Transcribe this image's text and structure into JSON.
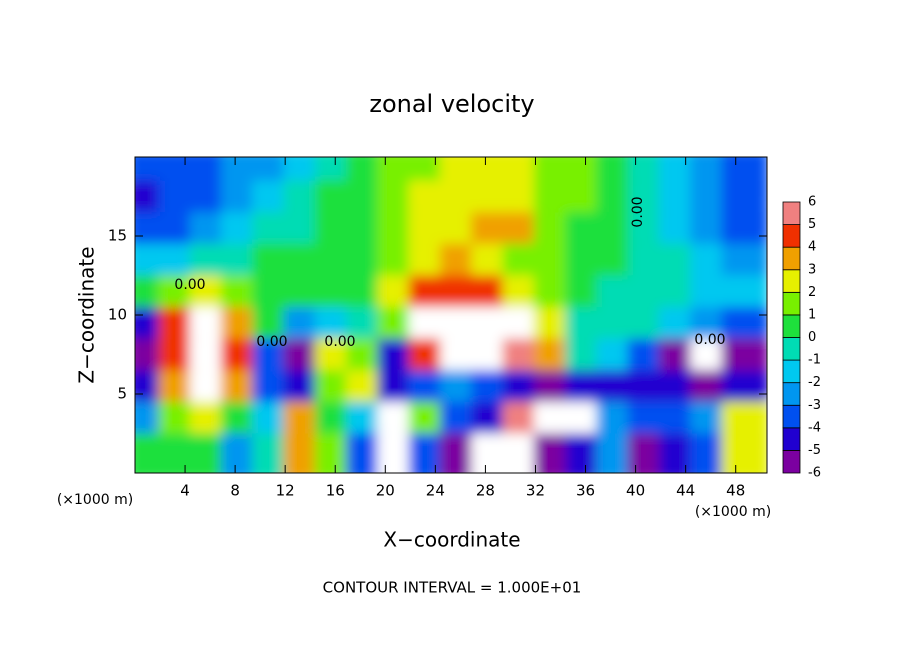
{
  "chart_data": {
    "type": "heatmap",
    "title": "zonal velocity",
    "xlabel": "X−coordinate",
    "ylabel": "Z−coordinate",
    "x_unit_left": "(×1000 m)",
    "x_unit_right": "(×1000 m)",
    "footer": "CONTOUR INTERVAL = 1.000E+01",
    "contour_labels": [
      "0.00",
      "0.00",
      "0.00",
      "0.00",
      "0.00"
    ],
    "xlim": [
      0,
      50.5
    ],
    "ylim": [
      0,
      20
    ],
    "xticks": [
      4,
      8,
      12,
      16,
      20,
      24,
      28,
      32,
      36,
      40,
      44,
      48
    ],
    "yticks": [
      5,
      10,
      15
    ],
    "x": [
      1.25,
      3.75,
      6.25,
      8.75,
      11.25,
      13.75,
      16.25,
      18.75,
      21.25,
      23.75,
      26.25,
      28.75,
      31.25,
      33.75,
      36.25,
      38.75,
      41.25,
      43.75,
      46.25,
      48.75
    ],
    "y": [
      19,
      17,
      15,
      13,
      11,
      9,
      7,
      5,
      3,
      1
    ],
    "values": [
      [
        -3.5,
        -3.5,
        -3,
        -2.5,
        -2,
        -1,
        0,
        0.5,
        1.5,
        2,
        2.5,
        3,
        2.5,
        2,
        1.5,
        1,
        0,
        -1,
        -2,
        -3
      ],
      [
        -4,
        -3.5,
        -3,
        -2,
        -1,
        0,
        0.5,
        1,
        1.5,
        2.5,
        3,
        3,
        3,
        2,
        1.5,
        0.5,
        -0.5,
        -1.5,
        -2.5,
        -3.5
      ],
      [
        -3.5,
        -3,
        -2.5,
        -1.5,
        -0.5,
        0,
        0.5,
        1,
        1.5,
        2.5,
        3,
        3.5,
        4,
        2,
        1,
        0.5,
        0,
        -1,
        -2,
        -3
      ],
      [
        -1.5,
        -1,
        -0.5,
        0,
        0.5,
        0.5,
        1,
        1,
        2,
        3,
        3.5,
        3,
        2,
        1.5,
        1,
        0.5,
        0,
        -0.5,
        -1.5,
        -2
      ],
      [
        0.5,
        2,
        3,
        2,
        1,
        0.5,
        1,
        1,
        3,
        5,
        5,
        4.5,
        3,
        1.5,
        1,
        0,
        0,
        -0.5,
        -1,
        -1
      ],
      [
        -4,
        5,
        7,
        4,
        1,
        -2,
        -1,
        0,
        2,
        7,
        8,
        8,
        7,
        3,
        0,
        -0.5,
        0,
        -1,
        -2,
        -3
      ],
      [
        -5,
        5,
        8,
        5,
        -3,
        -5,
        3,
        2,
        -4,
        5,
        8,
        8,
        6,
        4,
        0,
        -1,
        -3,
        -5,
        -7,
        -6
      ],
      [
        -4,
        4,
        7,
        4,
        -3,
        -4,
        2,
        3,
        -4,
        -3,
        -2,
        -3,
        -4,
        -5,
        -4,
        -4,
        -4,
        -4,
        -5,
        -4
      ],
      [
        -2,
        2,
        3,
        1,
        -1,
        4,
        1,
        -1,
        7,
        2,
        -3,
        -4,
        6,
        8,
        7,
        -2,
        -3,
        -3,
        -2,
        3
      ],
      [
        0.5,
        1,
        0.5,
        -2,
        0,
        4,
        2,
        -3,
        7,
        -3,
        -6,
        -7,
        -7,
        -6,
        -4,
        -2,
        -5,
        -4,
        -3,
        3
      ]
    ],
    "levels": [
      -6,
      -5,
      -4,
      -3,
      -2,
      -1,
      0,
      1,
      2,
      3,
      4,
      5,
      6
    ],
    "colors": [
      "#7b00a0",
      "#2000d0",
      "#0050f0",
      "#0096f0",
      "#00c8f0",
      "#00dcb4",
      "#1ee03c",
      "#78f000",
      "#e6f000",
      "#f0a000",
      "#f03000",
      "#f08080"
    ],
    "out_of_range_color": "#ffffff"
  }
}
